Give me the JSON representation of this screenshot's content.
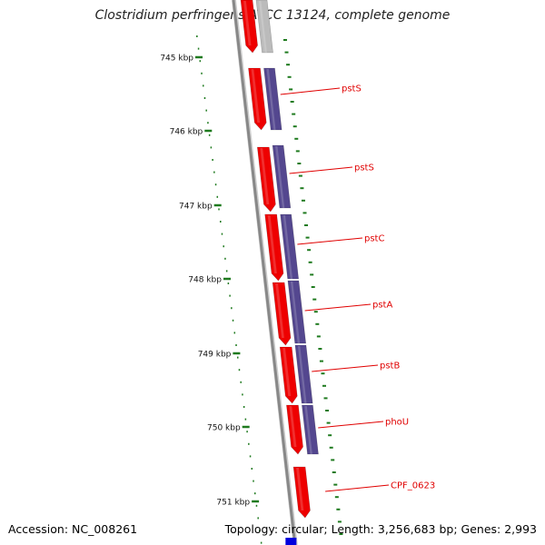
{
  "title": "Clostridium perfringens ATCC 13124, complete genome",
  "accession": "Accession: NC_008261",
  "topology": "Topology: circular; Length: 3,256,683 bp; Genes: 2,993",
  "scale_ticks": [
    {
      "kbp": 745,
      "label": "745 kbp"
    },
    {
      "kbp": 746,
      "label": "746 kbp"
    },
    {
      "kbp": 747,
      "label": "747 kbp"
    },
    {
      "kbp": 748,
      "label": "748 kbp"
    },
    {
      "kbp": 749,
      "label": "749 kbp"
    },
    {
      "kbp": 750,
      "label": "750 kbp"
    },
    {
      "kbp": 751,
      "label": "751 kbp"
    }
  ],
  "gene_labels": [
    {
      "name": "pstS"
    },
    {
      "name": "pstS"
    },
    {
      "name": "pstC"
    },
    {
      "name": "pstA"
    },
    {
      "name": "pstB"
    },
    {
      "name": "phoU"
    },
    {
      "name": "CPF_0623"
    }
  ],
  "colors": {
    "forward_gene": "#ee0000",
    "cds_feature": "#54478f",
    "grey_feature": "#bbbbbb",
    "scale": "#1e7a1e",
    "label_line": "#e00000",
    "backbone": "#888888",
    "marker": "#0000dd"
  }
}
